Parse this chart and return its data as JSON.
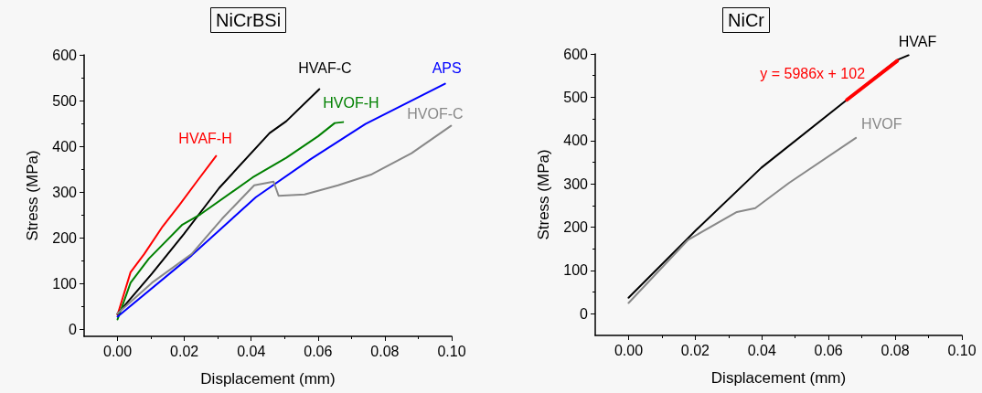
{
  "chart_data": [
    {
      "type": "line",
      "title": "NiCrBSi",
      "xlabel": "Displacement (mm)",
      "ylabel": "Stress (MPa)",
      "xlim": [
        -0.01,
        0.1
      ],
      "xticks": [
        {
          "value": 0,
          "label": "0.00"
        },
        {
          "value": 0.02,
          "label": "0.02"
        },
        {
          "value": 0.04,
          "label": "0.04"
        },
        {
          "value": 0.06,
          "label": "0.06"
        },
        {
          "value": 0.08,
          "label": "0.08"
        },
        {
          "value": 0.1,
          "label": "0.10"
        }
      ],
      "ylim": [
        -15,
        600
      ],
      "yticks": [
        0,
        100,
        200,
        300,
        400,
        500,
        600
      ],
      "grid": false,
      "legend": false,
      "marker": "none",
      "line_style": "solid",
      "series": [
        {
          "name": "HVAF-H",
          "color": "#ff0000",
          "x": [
            0,
            0.0039,
            0.008,
            0.0135,
            0.0185,
            0.0236,
            0.0295
          ],
          "values": [
            32,
            125,
            165,
            225,
            272,
            322,
            379
          ]
        },
        {
          "name": "HVAF-C",
          "color": "#000000",
          "x": [
            0,
            0.0103,
            0.0199,
            0.0304,
            0.0455,
            0.0505,
            0.0604
          ],
          "values": [
            34,
            122,
            209,
            309,
            429,
            455,
            525
          ]
        },
        {
          "name": "HVOF-H",
          "color": "#008000",
          "x": [
            0,
            0.0039,
            0.0094,
            0.0194,
            0.0249,
            0.0404,
            0.0505,
            0.06,
            0.065,
            0.0675
          ],
          "values": [
            22,
            102,
            155,
            229,
            252,
            332,
            375,
            422,
            451,
            453
          ]
        },
        {
          "name": "APS",
          "color": "#0000ff",
          "x": [
            0,
            0.0222,
            0.0414,
            0.0578,
            0.0742,
            0.098
          ],
          "values": [
            28,
            162,
            289,
            372,
            449,
            537
          ]
        },
        {
          "name": "HVOF-C",
          "color": "#888888",
          "x": [
            0,
            0.0103,
            0.0222,
            0.0313,
            0.0409,
            0.0467,
            0.0482,
            0.056,
            0.066,
            0.0761,
            0.088,
            0.0998
          ],
          "values": [
            35,
            102,
            165,
            242,
            315,
            323,
            292,
            295,
            315,
            339,
            385,
            445
          ]
        }
      ]
    },
    {
      "type": "line",
      "title": "NiCr",
      "xlabel": "Displacement (mm)",
      "ylabel": "Stress (MPa)",
      "xlim": [
        -0.01,
        0.1
      ],
      "xticks": [
        {
          "value": 0,
          "label": "0.00"
        },
        {
          "value": 0.02,
          "label": "0.02"
        },
        {
          "value": 0.04,
          "label": "0.04"
        },
        {
          "value": 0.06,
          "label": "0.06"
        },
        {
          "value": 0.08,
          "label": "0.08"
        },
        {
          "value": 0.1,
          "label": "0.10"
        }
      ],
      "ylim": [
        -50,
        600
      ],
      "yticks": [
        0,
        100,
        200,
        300,
        400,
        500,
        600
      ],
      "grid": false,
      "legend": false,
      "marker": "none",
      "line_style": "solid",
      "series": [
        {
          "name": "HVAF",
          "color": "#000000",
          "x": [
            0,
            0.0201,
            0.0398,
            0.0655,
            0.0806,
            0.084
          ],
          "values": [
            37,
            192,
            337,
            494,
            586,
            597
          ]
        },
        {
          "name": "HVOF",
          "color": "#888888",
          "x": [
            0,
            0.0179,
            0.0325,
            0.038,
            0.0481,
            0.0682
          ],
          "values": [
            25,
            171,
            235,
            244,
            302,
            406
          ]
        },
        {
          "name": "y = 5986x + 102",
          "color": "#ff0000",
          "x": [
            0.0655,
            0.0806
          ],
          "values": [
            494,
            584
          ]
        }
      ]
    }
  ]
}
